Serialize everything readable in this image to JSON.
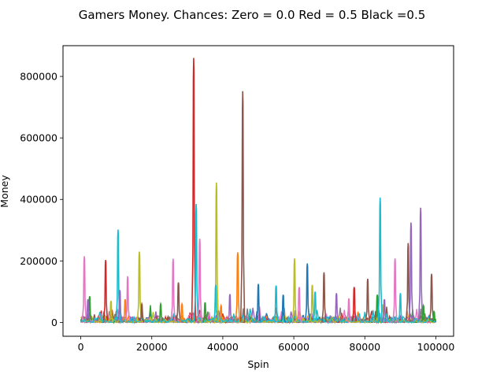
{
  "chart_data": {
    "type": "line",
    "title": "Gamers Money. Chances: Zero = 0.0  Red = 0.5  Black =0.5",
    "xlabel": "Spin",
    "ylabel": "Money",
    "xlim": [
      -5000,
      105000
    ],
    "ylim": [
      -45000,
      900000
    ],
    "xticks": [
      0,
      20000,
      40000,
      60000,
      80000,
      100000
    ],
    "xtick_labels": [
      "0",
      "20000",
      "40000",
      "60000",
      "80000",
      "100000"
    ],
    "yticks": [
      0,
      200000,
      400000,
      600000,
      800000
    ],
    "ytick_labels": [
      "0",
      "200000",
      "400000",
      "600000",
      "800000"
    ],
    "grid": false,
    "legend": "none",
    "palette": [
      "#1f77b4",
      "#ff7f0e",
      "#2ca02c",
      "#d62728",
      "#9467bd",
      "#8c564b",
      "#e377c2",
      "#7f7f7f",
      "#bcbd22",
      "#17becf"
    ],
    "spikes": [
      {
        "color": "#e377c2",
        "x": 1000,
        "peak": 215000
      },
      {
        "color": "#2ca02c",
        "x": 2500,
        "peak": 85000
      },
      {
        "color": "#9467bd",
        "x": 2000,
        "peak": 75000
      },
      {
        "color": "#d62728",
        "x": 7000,
        "peak": 203000
      },
      {
        "color": "#bcbd22",
        "x": 8500,
        "peak": 70000
      },
      {
        "color": "#17becf",
        "x": 10500,
        "peak": 302000
      },
      {
        "color": "#9467bd",
        "x": 11000,
        "peak": 105000
      },
      {
        "color": "#ff7f0e",
        "x": 12500,
        "peak": 75000
      },
      {
        "color": "#e377c2",
        "x": 13200,
        "peak": 150000
      },
      {
        "color": "#bcbd22",
        "x": 16500,
        "peak": 230000
      },
      {
        "color": "#8c564b",
        "x": 17200,
        "peak": 60000
      },
      {
        "color": "#2ca02c",
        "x": 22500,
        "peak": 60000
      },
      {
        "color": "#e377c2",
        "x": 26000,
        "peak": 207000
      },
      {
        "color": "#8c564b",
        "x": 27500,
        "peak": 130000
      },
      {
        "color": "#ff7f0e",
        "x": 28500,
        "peak": 60000
      },
      {
        "color": "#d62728",
        "x": 31800,
        "peak": 860000
      },
      {
        "color": "#17becf",
        "x": 32500,
        "peak": 385000
      },
      {
        "color": "#e377c2",
        "x": 33500,
        "peak": 272000
      },
      {
        "color": "#2ca02c",
        "x": 35000,
        "peak": 65000
      },
      {
        "color": "#bcbd22",
        "x": 38200,
        "peak": 455000
      },
      {
        "color": "#17becf",
        "x": 38000,
        "peak": 122000
      },
      {
        "color": "#ff7f0e",
        "x": 39500,
        "peak": 55000
      },
      {
        "color": "#9467bd",
        "x": 42000,
        "peak": 92000
      },
      {
        "color": "#ff7f0e",
        "x": 44200,
        "peak": 228000
      },
      {
        "color": "#8c564b",
        "x": 45600,
        "peak": 752000
      },
      {
        "color": "#1f77b4",
        "x": 50000,
        "peak": 125000
      },
      {
        "color": "#17becf",
        "x": 55000,
        "peak": 120000
      },
      {
        "color": "#1f77b4",
        "x": 57000,
        "peak": 90000
      },
      {
        "color": "#bcbd22",
        "x": 60200,
        "peak": 208000
      },
      {
        "color": "#e377c2",
        "x": 61500,
        "peak": 115000
      },
      {
        "color": "#1f77b4",
        "x": 63800,
        "peak": 192000
      },
      {
        "color": "#bcbd22",
        "x": 65200,
        "peak": 122000
      },
      {
        "color": "#17becf",
        "x": 66000,
        "peak": 100000
      },
      {
        "color": "#8c564b",
        "x": 68500,
        "peak": 163000
      },
      {
        "color": "#9467bd",
        "x": 72000,
        "peak": 95000
      },
      {
        "color": "#e377c2",
        "x": 75500,
        "peak": 78000
      },
      {
        "color": "#d62728",
        "x": 77000,
        "peak": 115000
      },
      {
        "color": "#8c564b",
        "x": 80800,
        "peak": 142000
      },
      {
        "color": "#2ca02c",
        "x": 83500,
        "peak": 90000
      },
      {
        "color": "#17becf",
        "x": 84300,
        "peak": 406000
      },
      {
        "color": "#9467bd",
        "x": 85500,
        "peak": 75000
      },
      {
        "color": "#e377c2",
        "x": 88500,
        "peak": 208000
      },
      {
        "color": "#17becf",
        "x": 90000,
        "peak": 95000
      },
      {
        "color": "#8c564b",
        "x": 92200,
        "peak": 258000
      },
      {
        "color": "#9467bd",
        "x": 93000,
        "peak": 325000
      },
      {
        "color": "#9467bd",
        "x": 95700,
        "peak": 373000
      },
      {
        "color": "#2ca02c",
        "x": 96500,
        "peak": 55000
      },
      {
        "color": "#8c564b",
        "x": 98800,
        "peak": 158000
      },
      {
        "color": "#2ca02c",
        "x": 99500,
        "peak": 35000
      }
    ]
  }
}
